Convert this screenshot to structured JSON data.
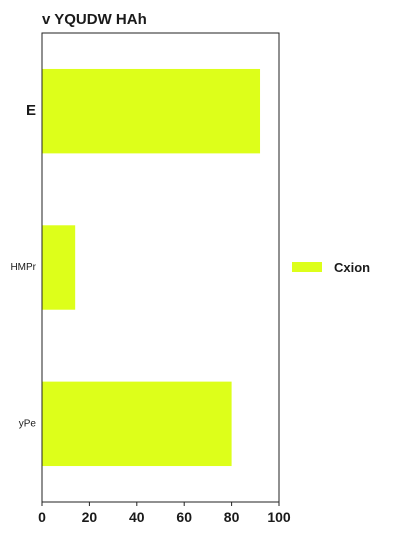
{
  "chart_data": {
    "type": "bar",
    "orientation": "horizontal",
    "title": "v YQUDW HAh",
    "categories": [
      "E",
      "HMPr",
      "yPe"
    ],
    "series": [
      {
        "name": "Cxion",
        "values": [
          92,
          14,
          80
        ],
        "color": "#ddff1a"
      }
    ],
    "xlim": [
      0,
      100
    ],
    "xticks": [
      "0",
      "20",
      "40",
      "60",
      "80",
      "100"
    ],
    "grid": false,
    "legend_position": "right"
  }
}
